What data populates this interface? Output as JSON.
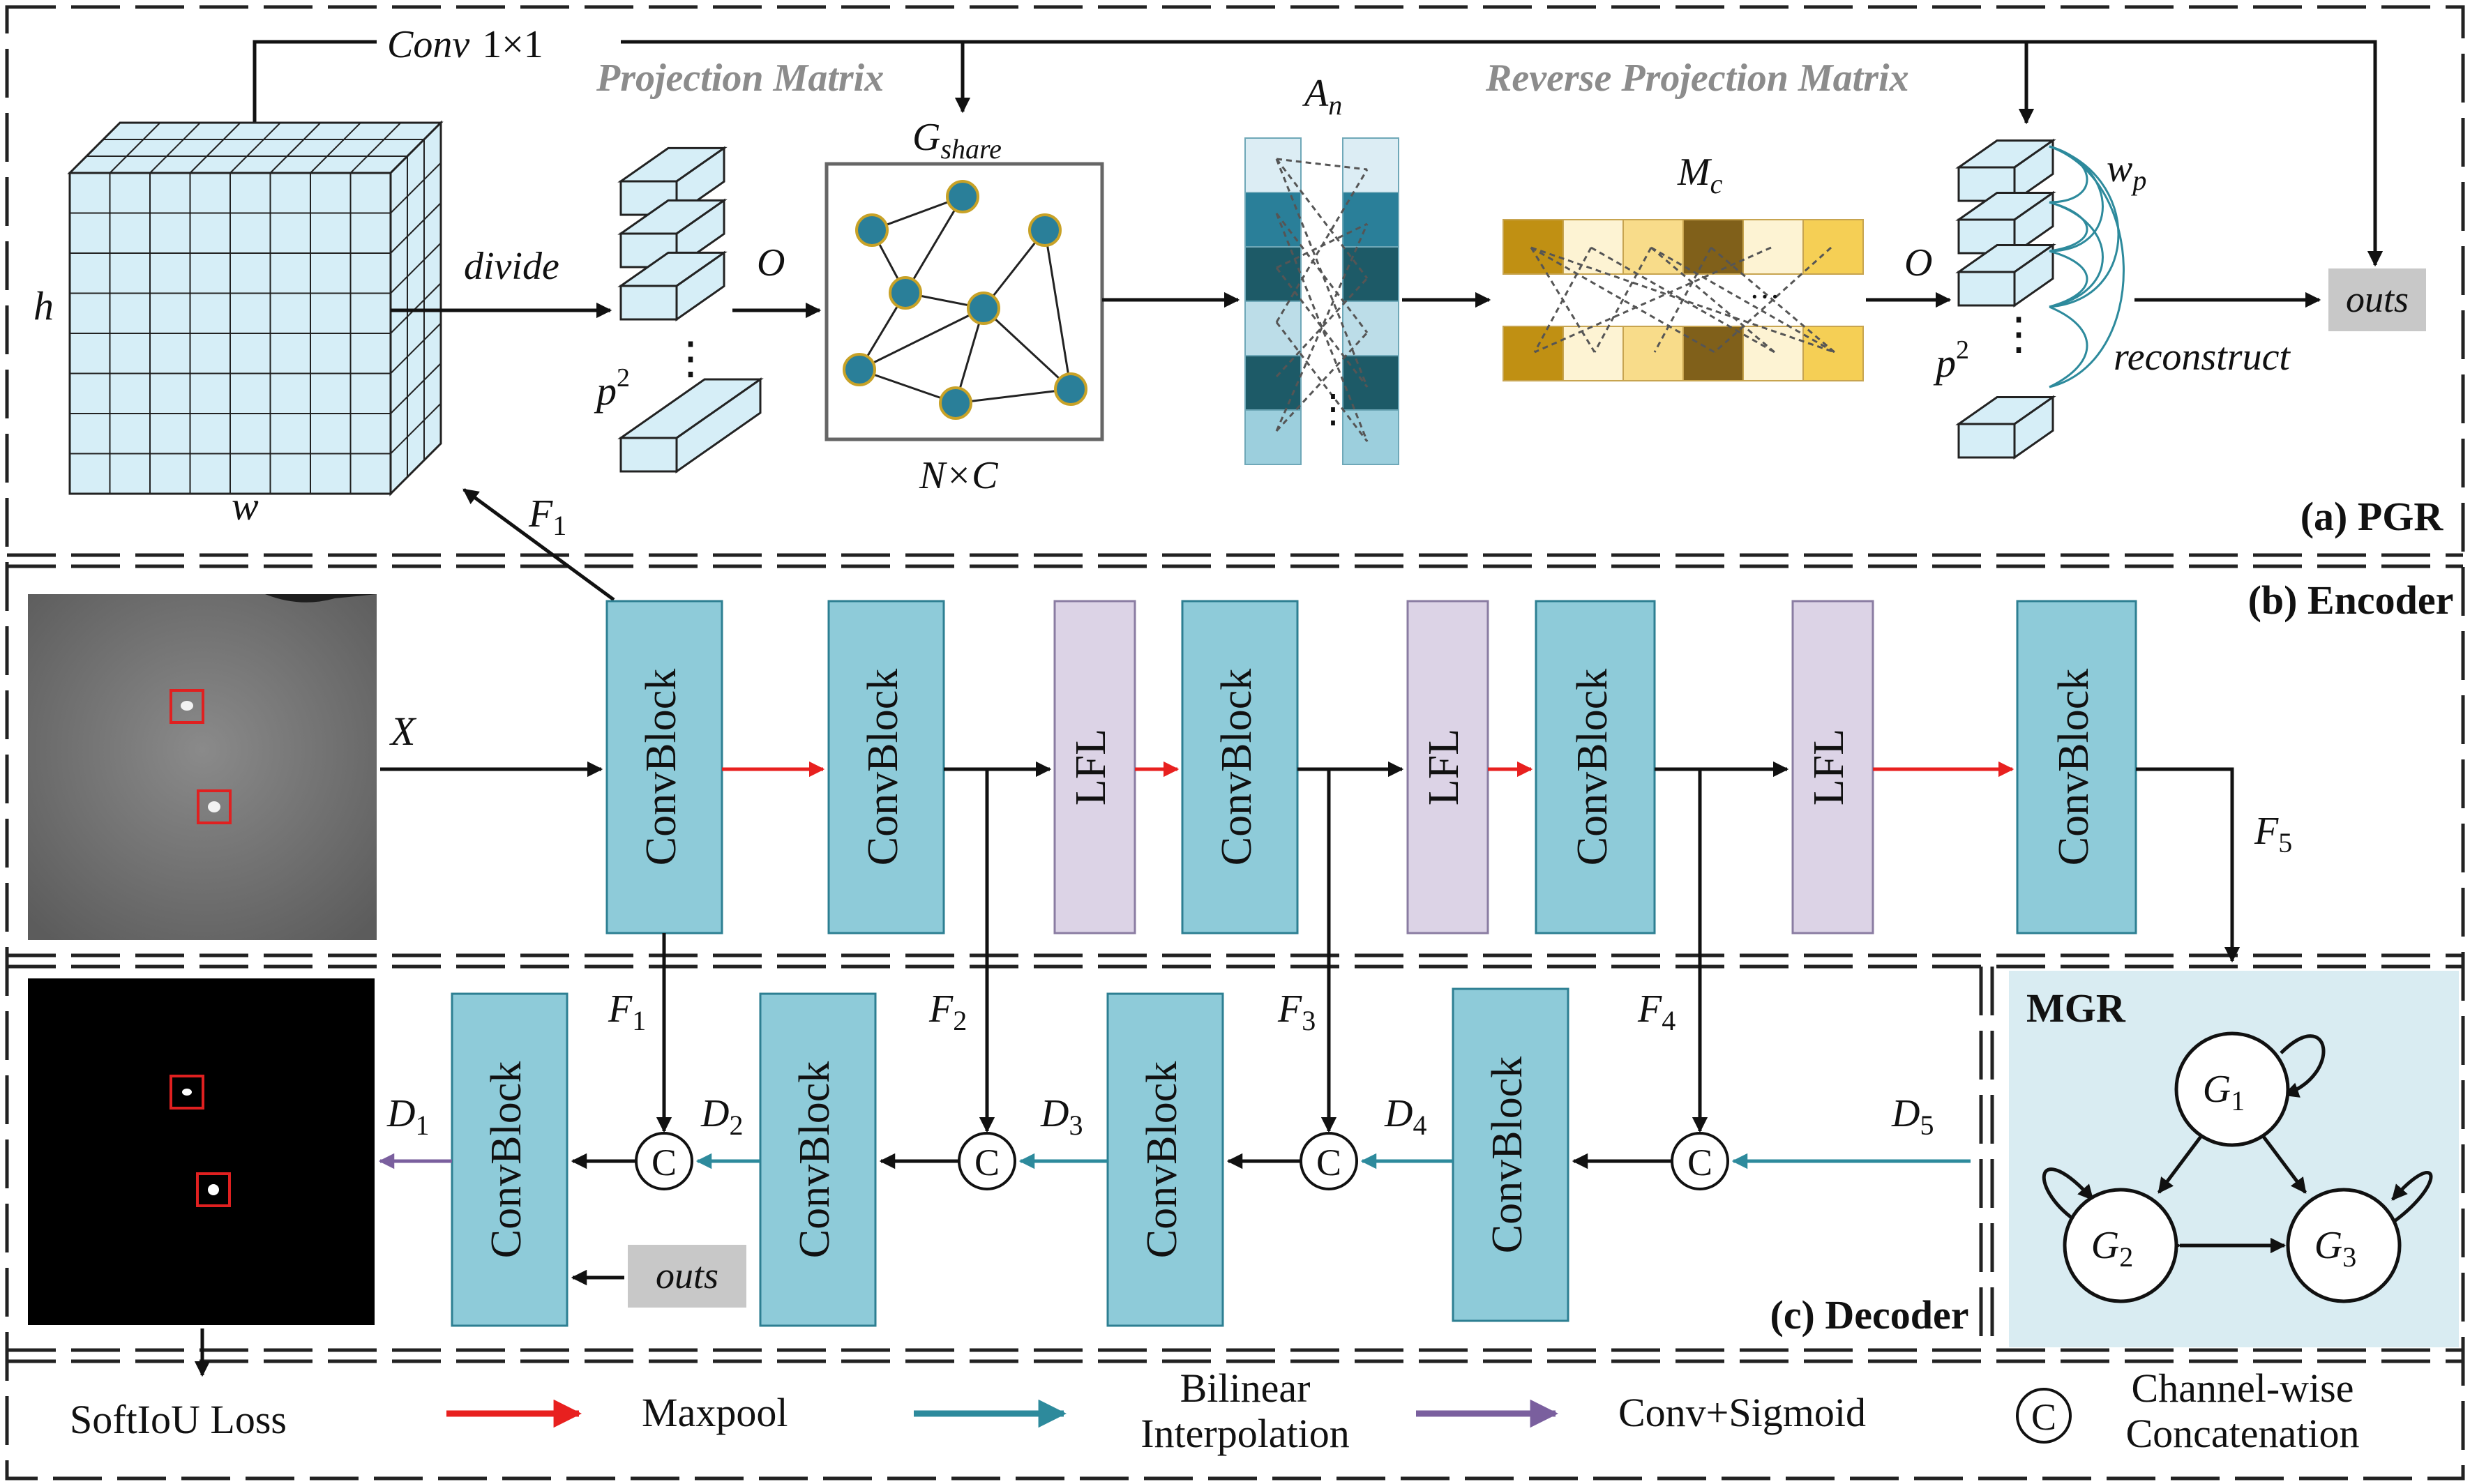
{
  "pgr": {
    "title": "(a) PGR",
    "conv_label": "Conv",
    "conv_size": "1×1",
    "proj_matrix": "Projection Matrix",
    "reverse_proj_matrix": "Reverse Projection Matrix",
    "h": "h",
    "w": "w",
    "divide": "divide",
    "o1": "O",
    "o2": "O",
    "p_left": "p",
    "p_right": "p",
    "sq": "2",
    "dots": "⋮",
    "g_share_main": "G",
    "g_share_sub": "share",
    "n_by_c": "N×C",
    "a_n_main": "A",
    "a_n_sub": "n",
    "m_c_main": "M",
    "m_c_sub": "c",
    "m_c_dots": "···",
    "w_p_main": "w",
    "w_p_sub": "p",
    "reconstruct": "reconstruct",
    "outs": "outs",
    "f1_main": "F",
    "f1_sub": "1"
  },
  "encoder": {
    "title": "(b) Encoder",
    "x_label": "X",
    "blocks": [
      "ConvBlock",
      "ConvBlock",
      "ConvBlock",
      "ConvBlock",
      "ConvBlock"
    ],
    "lfl": [
      "LFL",
      "LFL",
      "LFL"
    ],
    "f5_main": "F",
    "f5_sub": "5"
  },
  "decoder": {
    "title": "(c) Decoder",
    "blocks": [
      "ConvBlock",
      "ConvBlock",
      "ConvBlock",
      "ConvBlock"
    ],
    "concat": "C",
    "f_main": "F",
    "f_subs": [
      "1",
      "2",
      "3",
      "4"
    ],
    "d_main": "D",
    "d_subs": [
      "1",
      "2",
      "3",
      "4",
      "5"
    ],
    "outs": "outs"
  },
  "mgr": {
    "title": "MGR",
    "g_main": "G",
    "g_subs": [
      "1",
      "2",
      "3"
    ]
  },
  "legend": {
    "softiou": "SoftIoU Loss",
    "maxpool": "Maxpool",
    "bilinear_1": "Bilinear",
    "bilinear_2": "Interpolation",
    "conv_sigmoid": "Conv+Sigmoid",
    "concat_symbol": "C",
    "concat_1": "Channel-wise",
    "concat_2": "Concatenation"
  },
  "colors": {
    "block": "#8ecbd9",
    "lfl": "#dcd3e6",
    "cube": "#d6eef7",
    "maxpool": "#e8201f",
    "bilinear": "#2d8a9c",
    "sigmoid": "#7a5f9e",
    "node": "#2a7f99",
    "node_ring": "#c8a227",
    "mgr_bg": "#d9ecf2",
    "outs_bg": "#c8c8c8",
    "detect": "#e02020"
  }
}
